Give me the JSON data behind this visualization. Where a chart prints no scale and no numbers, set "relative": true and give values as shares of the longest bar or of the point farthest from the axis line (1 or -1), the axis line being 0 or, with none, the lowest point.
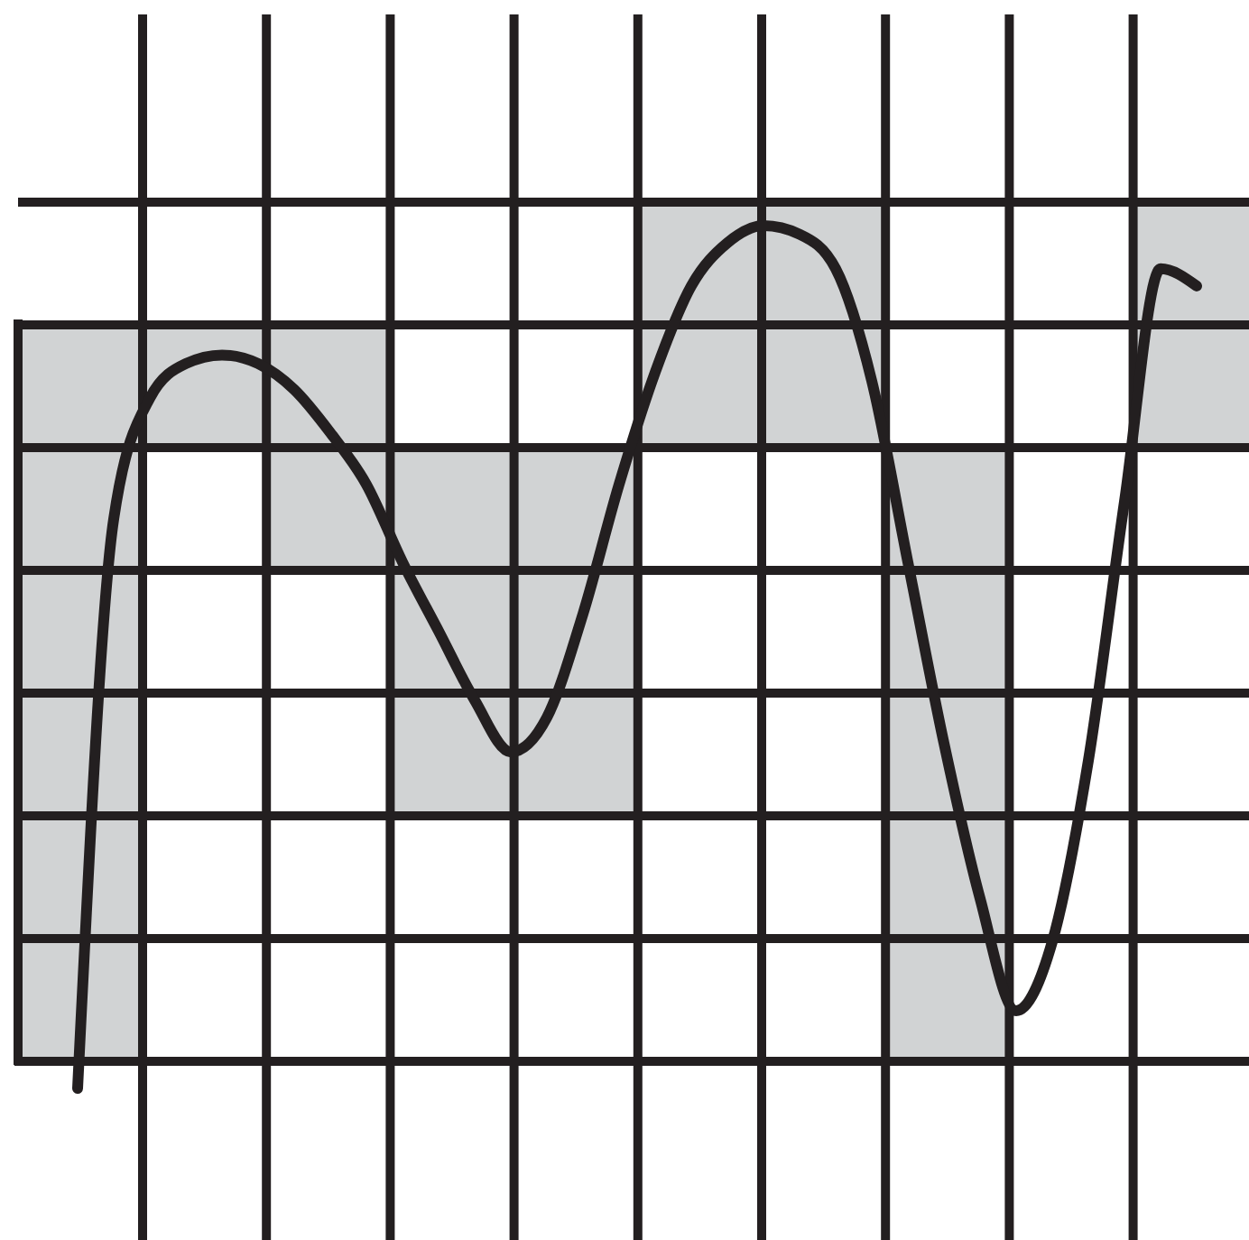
{
  "chart_data": {
    "type": "line",
    "relative": true,
    "grid": true,
    "categories": [
      null,
      null,
      null,
      null,
      null,
      null,
      null,
      null,
      null,
      null,
      null,
      null,
      null,
      null,
      null,
      null,
      null,
      null,
      null,
      null,
      null,
      null,
      null,
      null,
      null,
      null,
      null,
      null,
      null,
      null,
      null,
      null
    ],
    "series": [
      {
        "color": "#231f20",
        "values": [
          0,
          0.66,
          0.8,
          0.84,
          0.85,
          0.84,
          0.81,
          0.76,
          0.7,
          0.61,
          0.53,
          0.45,
          0.39,
          0.43,
          0.55,
          0.7,
          0.83,
          0.93,
          0.98,
          1,
          0.99,
          0.95,
          0.82,
          0.61,
          0.4,
          0.22,
          0.09,
          0.17,
          0.38,
          0.68,
          0.95,
          0.93
        ]
      }
    ]
  }
}
